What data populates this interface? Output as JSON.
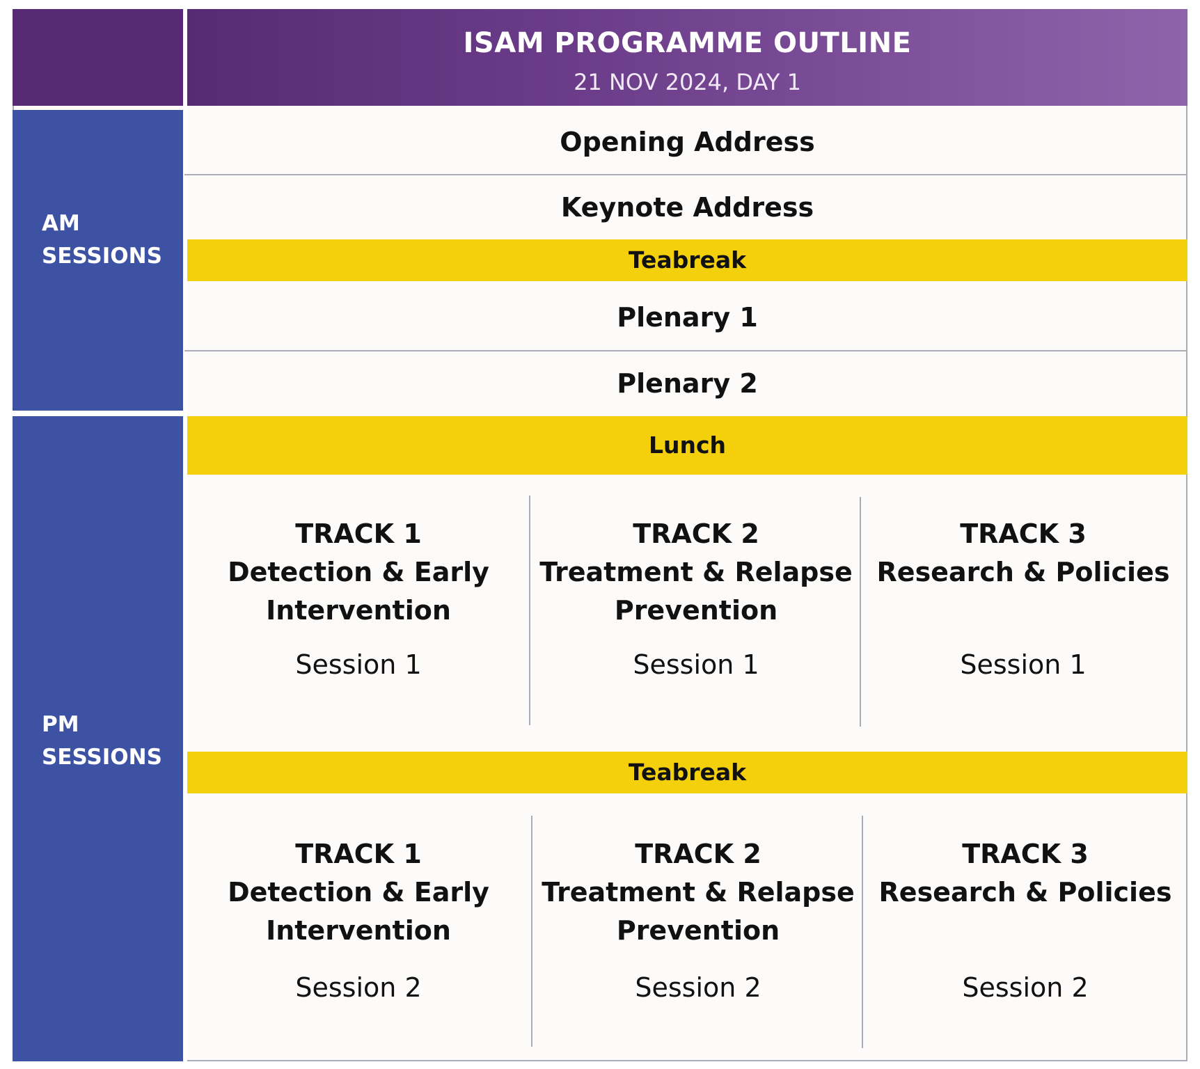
{
  "header": {
    "title": "ISAM PROGRAMME OUTLINE",
    "subtitle": "21 NOV 2024, DAY 1"
  },
  "sidebar": {
    "am_label": "AM\nSESSIONS",
    "am_line1": "AM",
    "am_line2": "SESSIONS",
    "pm_line1": "PM",
    "pm_line2": "SESSIONS"
  },
  "am": {
    "opening": "Opening Address",
    "keynote": "Keynote Address",
    "teabreak": "Teabreak",
    "plenary1": "Plenary 1",
    "plenary2": "Plenary 2"
  },
  "pm": {
    "lunch": "Lunch",
    "teabreak": "Teabreak",
    "block1": {
      "tracks": [
        {
          "name": "TRACK 1",
          "topic_line1": "Detection & Early",
          "topic_line2": "Intervention",
          "session": "Session 1"
        },
        {
          "name": "TRACK 2",
          "topic_line1": "Treatment & Relapse",
          "topic_line2": "Prevention",
          "session": "Session 1"
        },
        {
          "name": "TRACK 3",
          "topic_line1": "Research & Policies",
          "topic_line2": "",
          "session": "Session 1"
        }
      ]
    },
    "block2": {
      "tracks": [
        {
          "name": "TRACK 1",
          "topic_line1": "Detection & Early",
          "topic_line2": "Intervention",
          "session": "Session 2"
        },
        {
          "name": "TRACK 2",
          "topic_line1": "Treatment & Relapse",
          "topic_line2": "Prevention",
          "session": "Session 2"
        },
        {
          "name": "TRACK 3",
          "topic_line1": "Research & Policies",
          "topic_line2": "",
          "session": "Session 2"
        }
      ]
    }
  },
  "colors": {
    "header_start": "#582a75",
    "header_end": "#8f63aa",
    "sidebar": "#3d52a2",
    "break_highlight": "#f3cf0c",
    "divider": "#a9adb8"
  }
}
